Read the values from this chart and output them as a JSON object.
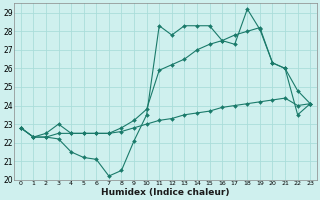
{
  "xlabel": "Humidex (Indice chaleur)",
  "bg_color": "#cff0ee",
  "grid_color": "#aaddda",
  "line_color": "#1a7a6a",
  "xlim": [
    -0.5,
    23.5
  ],
  "ylim": [
    20,
    29.5
  ],
  "yticks": [
    20,
    21,
    22,
    23,
    24,
    25,
    26,
    27,
    28,
    29
  ],
  "xticks": [
    0,
    1,
    2,
    3,
    4,
    5,
    6,
    7,
    8,
    9,
    10,
    11,
    12,
    13,
    14,
    15,
    16,
    17,
    18,
    19,
    20,
    21,
    22,
    23
  ],
  "series_max": [
    22.8,
    22.3,
    22.3,
    22.2,
    21.5,
    21.2,
    21.1,
    20.2,
    20.5,
    22.1,
    23.5,
    28.3,
    27.8,
    28.3,
    28.3,
    28.3,
    27.5,
    27.3,
    29.2,
    28.1,
    26.3,
    26.0,
    23.5,
    24.1
  ],
  "series_mid": [
    22.8,
    22.3,
    22.5,
    23.0,
    22.5,
    22.5,
    22.5,
    22.5,
    22.8,
    23.2,
    23.8,
    25.9,
    26.2,
    26.5,
    27.0,
    27.3,
    27.5,
    27.8,
    28.0,
    28.2,
    26.3,
    26.0,
    24.8,
    24.1
  ],
  "series_min": [
    22.8,
    22.3,
    22.3,
    22.5,
    22.5,
    22.5,
    22.5,
    22.5,
    22.6,
    22.8,
    23.0,
    23.2,
    23.3,
    23.5,
    23.6,
    23.7,
    23.9,
    24.0,
    24.1,
    24.2,
    24.3,
    24.4,
    24.0,
    24.1
  ]
}
